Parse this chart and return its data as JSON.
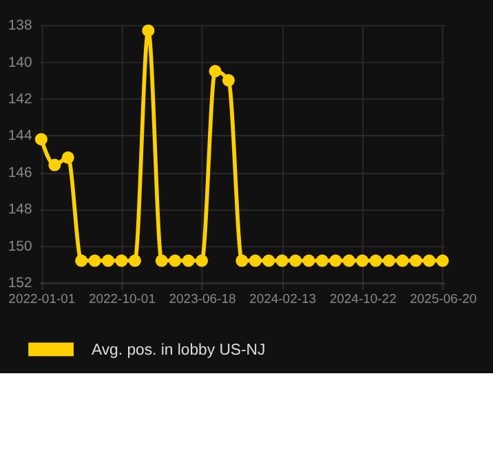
{
  "chart_data": {
    "type": "line",
    "categories": [
      "2022-01-01",
      null,
      null,
      null,
      null,
      null,
      "2022-10-01",
      null,
      null,
      null,
      null,
      null,
      "2023-06-18",
      null,
      null,
      null,
      null,
      null,
      "2024-02-13",
      null,
      null,
      null,
      null,
      null,
      "2024-10-22",
      null,
      null,
      null,
      null,
      null,
      "2025-06-20"
    ],
    "series": [
      {
        "name": "Avg. pos. in lobby US-NJ",
        "color": "#ffd000",
        "values": [
          144.2,
          145.6,
          145.2,
          150.8,
          150.8,
          150.8,
          150.8,
          150.8,
          138.3,
          150.8,
          150.8,
          150.8,
          150.8,
          140.5,
          141.0,
          150.8,
          150.8,
          150.8,
          150.8,
          150.8,
          150.8,
          150.8,
          150.8,
          150.8,
          150.8,
          150.8,
          150.8,
          150.8,
          150.8,
          150.8,
          150.8
        ]
      }
    ],
    "ylim": [
      152,
      138
    ],
    "yticks": [
      138,
      140,
      142,
      144,
      146,
      148,
      150,
      152
    ],
    "grid": true,
    "legend": "bottom",
    "marker": "circle",
    "line_style": "solid"
  }
}
